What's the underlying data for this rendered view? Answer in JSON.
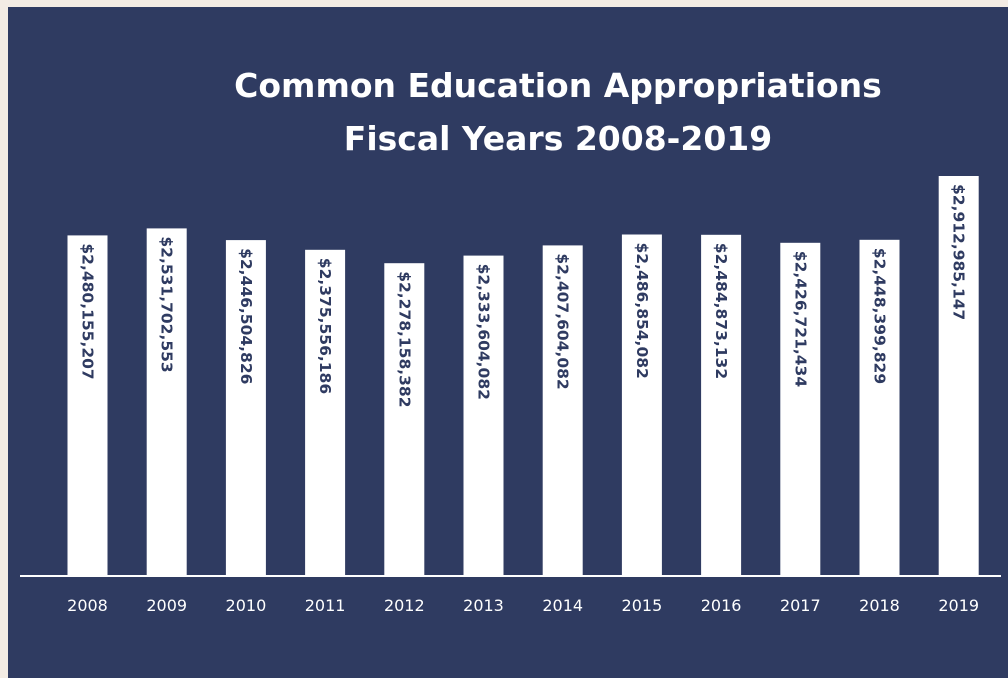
{
  "colors": {
    "page_border": "#f3ece4",
    "background": "#2f3b61",
    "bar": "#ffffff",
    "label_text": "#2f3b61",
    "axis_text": "#ffffff"
  },
  "chart_data": {
    "type": "bar",
    "title_lines": [
      "Common Education Appropriations",
      "Fiscal Years 2008-2019"
    ],
    "xlabel": "",
    "ylabel": "",
    "categories": [
      "2008",
      "2009",
      "2010",
      "2011",
      "2012",
      "2013",
      "2014",
      "2015",
      "2016",
      "2017",
      "2018",
      "2019"
    ],
    "values": [
      2480155207,
      2531702553,
      2446504826,
      2375556186,
      2278158382,
      2333604082,
      2407604082,
      2486854082,
      2484873132,
      2426721434,
      2448399829,
      2912985147
    ],
    "data_labels": [
      "$2,480,155,207",
      "$2,531,702,553",
      "$2,446,504,826",
      "$2,375,556,186",
      "$2,278,158,382",
      "$2,333,604,082",
      "$2,407,604,082",
      "$2,486,854,082",
      "$2,484,873,132",
      "$2,426,721,434",
      "$2,448,399,829",
      "$2,912,985,147"
    ],
    "ylim": [
      0,
      2912985147
    ],
    "grid": false,
    "legend": "none"
  }
}
